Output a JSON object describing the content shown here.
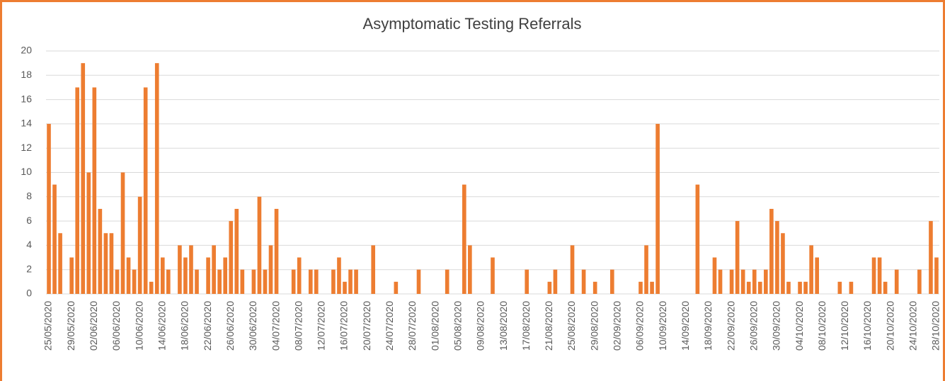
{
  "chart_data": {
    "type": "bar",
    "title": "Asymptomatic Testing Referrals",
    "categories": [
      "25/05/2020",
      null,
      null,
      null,
      "29/05/2020",
      null,
      null,
      null,
      "02/06/2020",
      null,
      null,
      null,
      "06/06/2020",
      null,
      null,
      null,
      "10/06/2020",
      null,
      null,
      null,
      "14/06/2020",
      null,
      null,
      null,
      "18/06/2020",
      null,
      null,
      null,
      "22/06/2020",
      null,
      null,
      null,
      "26/06/2020",
      null,
      null,
      null,
      "30/06/2020",
      null,
      null,
      null,
      "04/07/2020",
      null,
      null,
      null,
      "08/07/2020",
      null,
      null,
      null,
      "12/07/2020",
      null,
      null,
      null,
      "16/07/2020",
      null,
      null,
      null,
      "20/07/2020",
      null,
      null,
      null,
      "24/07/2020",
      null,
      null,
      null,
      "28/07/2020",
      null,
      null,
      null,
      "01/08/2020",
      null,
      null,
      null,
      "05/08/2020",
      null,
      null,
      null,
      "09/08/2020",
      null,
      null,
      null,
      "13/08/2020",
      null,
      null,
      null,
      "17/08/2020",
      null,
      null,
      null,
      "21/08/2020",
      null,
      null,
      null,
      "25/08/2020",
      null,
      null,
      null,
      "29/08/2020",
      null,
      null,
      null,
      "02/09/2020",
      null,
      null,
      null,
      "06/09/2020",
      null,
      null,
      null,
      "10/09/2020",
      null,
      null,
      null,
      "14/09/2020",
      null,
      null,
      null,
      "18/09/2020",
      null,
      null,
      null,
      "22/09/2020",
      null,
      null,
      null,
      "26/09/2020",
      null,
      null,
      null,
      "30/09/2020",
      null,
      null,
      null,
      "04/10/2020",
      null,
      null,
      null,
      "08/10/2020",
      null,
      null,
      null,
      "12/10/2020",
      null,
      null,
      null,
      "16/10/2020",
      null,
      null,
      null,
      "20/10/2020",
      null,
      null,
      null,
      "24/10/2020",
      null,
      null,
      null,
      "28/10/2020"
    ],
    "values": [
      14,
      9,
      5,
      0,
      3,
      17,
      19,
      10,
      17,
      7,
      5,
      5,
      2,
      10,
      3,
      2,
      8,
      17,
      1,
      19,
      3,
      2,
      0,
      4,
      3,
      4,
      2,
      0,
      3,
      4,
      2,
      3,
      6,
      7,
      2,
      0,
      2,
      8,
      2,
      4,
      7,
      0,
      0,
      2,
      3,
      0,
      2,
      2,
      0,
      0,
      2,
      3,
      1,
      2,
      2,
      0,
      0,
      4,
      0,
      0,
      0,
      1,
      0,
      0,
      0,
      2,
      0,
      0,
      0,
      0,
      2,
      0,
      0,
      9,
      4,
      0,
      0,
      0,
      3,
      0,
      0,
      0,
      0,
      0,
      2,
      0,
      0,
      0,
      1,
      2,
      0,
      0,
      4,
      0,
      2,
      0,
      1,
      0,
      0,
      2,
      0,
      0,
      0,
      0,
      1,
      4,
      1,
      14,
      0,
      0,
      0,
      0,
      0,
      0,
      9,
      0,
      0,
      3,
      2,
      0,
      2,
      6,
      2,
      1,
      2,
      1,
      2,
      7,
      6,
      5,
      1,
      0,
      1,
      1,
      4,
      3,
      0,
      0,
      0,
      1,
      0,
      1,
      0,
      0,
      0,
      3,
      3,
      1,
      0,
      2,
      0,
      0,
      0,
      2,
      0,
      6,
      3
    ],
    "color": "#ed7d31",
    "ylim": [
      0,
      20
    ],
    "yticks": [
      0,
      2,
      4,
      6,
      8,
      10,
      12,
      14,
      16,
      18,
      20
    ],
    "grid": true
  }
}
